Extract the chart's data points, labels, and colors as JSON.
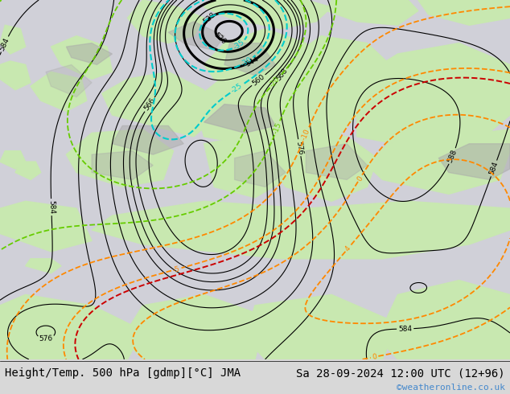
{
  "title_left": "Height/Temp. 500 hPa [gdmp][°C] JMA",
  "title_right": "Sa 28-09-2024 12:00 UTC (12+96)",
  "watermark": "©weatheronline.co.uk",
  "text_color_left": "#000000",
  "text_color_right": "#000000",
  "text_color_watermark": "#4488cc",
  "font_size_title": 10,
  "font_size_watermark": 8,
  "fig_width": 6.34,
  "fig_height": 4.9,
  "dpi": 100,
  "sea_color": "#d0d0d8",
  "land_color": "#c8e8b0",
  "grey_color": "#b0b0b0",
  "bottom_bg": "#d8d8d8"
}
